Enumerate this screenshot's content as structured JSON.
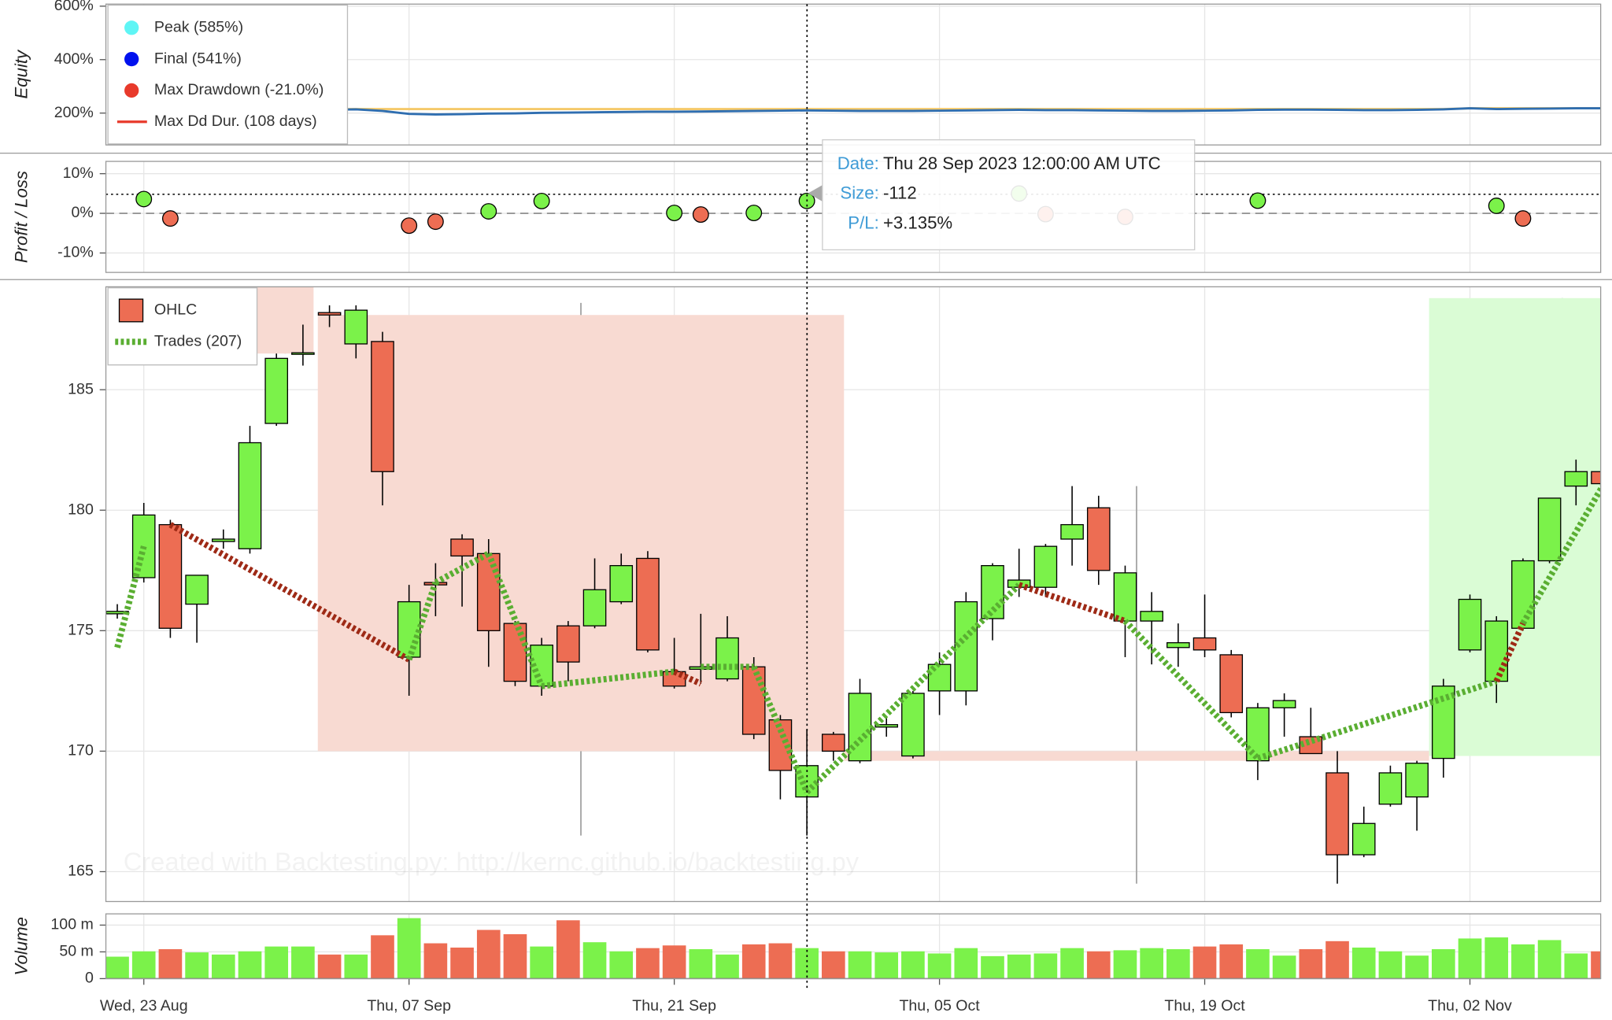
{
  "chart_data": [
    {
      "type": "line",
      "y_label": "Equity",
      "xlim": [
        -0.43,
        55.93
      ],
      "ylim": [
        80.8,
        607.7
      ],
      "yticks": [
        {
          "value": 200,
          "label": "200%"
        },
        {
          "value": 400,
          "label": "400%"
        },
        {
          "value": 600,
          "label": "600%"
        }
      ],
      "grid": true,
      "series": [
        {
          "color": "#f5c96a",
          "values": [
            215,
            215,
            215,
            215,
            215,
            215,
            215,
            215,
            215,
            215,
            215,
            215,
            215,
            215,
            215,
            215,
            215,
            215,
            215,
            215,
            215,
            215,
            215,
            215,
            215,
            215,
            215,
            215,
            215,
            215,
            215,
            215,
            215,
            215,
            215,
            215,
            215,
            215,
            215,
            215,
            215,
            215,
            215,
            215,
            215,
            215,
            215,
            215,
            215,
            215,
            215,
            218,
            218,
            218,
            218,
            218,
            218
          ]
        },
        {
          "color": "#2f6eb0",
          "values": [
            212,
            212,
            212,
            212,
            212,
            212,
            212,
            212,
            212,
            214,
            208,
            197,
            195,
            196,
            198,
            199,
            201,
            202,
            203,
            204,
            205,
            205,
            206,
            207,
            208,
            209,
            210,
            209,
            208,
            208,
            208,
            209,
            210,
            211,
            212,
            211,
            211,
            210,
            209,
            208,
            208,
            209,
            210,
            212,
            213,
            213,
            212,
            211,
            211,
            212,
            214,
            218,
            215,
            216,
            217,
            218,
            218
          ]
        }
      ],
      "legend": [
        {
          "label": "Peak (585%)",
          "color": "#5ff5f5",
          "marker": "circle"
        },
        {
          "label": "Final (541%)",
          "color": "#0011ee",
          "marker": "circle"
        },
        {
          "label": "Max Drawdown (-21.0%)",
          "color": "#e83a2b",
          "marker": "circle"
        },
        {
          "label": "Max Dd Dur. (108 days)",
          "color": "#e83a2b",
          "marker": "line"
        }
      ]
    },
    {
      "type": "scatter",
      "y_label": "Profit / Loss",
      "xlim": [
        -0.43,
        55.93
      ],
      "ylim": [
        -14.9,
        13.1
      ],
      "yticks": [
        {
          "value": 10,
          "label": "10%"
        },
        {
          "value": 0,
          "label": "0%"
        },
        {
          "value": -10,
          "label": "-10%"
        }
      ],
      "grid": true,
      "up_color": "#7bf24a",
      "down_color": "#ed6d53",
      "x": [
        1,
        2,
        11,
        12,
        14,
        16,
        21,
        22,
        24,
        26,
        34,
        35,
        38,
        43,
        52,
        53
      ],
      "values": [
        3.6,
        -1.3,
        -3.1,
        -2.1,
        0.5,
        3.1,
        0.1,
        -0.3,
        0.1,
        3.135,
        5.0,
        -0.2,
        -0.9,
        3.2,
        1.9,
        -1.3
      ],
      "reference_lines": [
        {
          "value": 0,
          "style": "dashed"
        },
        {
          "value": 4.8,
          "style": "dotted"
        }
      ]
    },
    {
      "type": "candlestick",
      "xlim": [
        -0.43,
        55.93
      ],
      "ylim": [
        163.76,
        189.27
      ],
      "yticks": [
        165,
        170,
        175,
        180,
        185
      ],
      "grid": true,
      "up_color": "#7bf24a",
      "down_color": "#ed6d53",
      "bg_up_color": "#dafcd5",
      "bg_down_color": "#f8dad2",
      "open": [
        175.7,
        177.2,
        179.4,
        176.1,
        178.7,
        178.4,
        183.6,
        186.5,
        188.2,
        186.9,
        187.0,
        173.9,
        177.0,
        178.8,
        178.2,
        175.3,
        172.7,
        175.2,
        175.2,
        176.2,
        178.0,
        173.3,
        173.4,
        173.0,
        173.5,
        171.3,
        168.1,
        170.7,
        169.6,
        171.0,
        169.8,
        172.5,
        172.5,
        175.5,
        176.8,
        176.8,
        178.8,
        180.1,
        175.4,
        175.4,
        174.3,
        174.7,
        174.0,
        169.6,
        171.8,
        170.6,
        169.1,
        165.7,
        167.8,
        168.1,
        169.7,
        174.2,
        172.9,
        175.1,
        177.9,
        181.0,
        181.6
      ],
      "high": [
        176.1,
        180.3,
        179.6,
        177.3,
        179.2,
        183.5,
        186.5,
        187.7,
        188.5,
        188.5,
        187.4,
        176.9,
        177.8,
        179.0,
        178.8,
        175.4,
        174.7,
        175.4,
        178.0,
        178.2,
        178.3,
        174.7,
        175.7,
        175.6,
        173.9,
        171.5,
        170.9,
        170.8,
        173.0,
        171.4,
        172.5,
        174.1,
        176.6,
        177.8,
        178.4,
        178.6,
        181.0,
        180.6,
        177.7,
        176.6,
        175.3,
        176.5,
        174.2,
        172.0,
        172.4,
        171.8,
        170.0,
        167.7,
        169.4,
        169.6,
        173.0,
        176.5,
        175.6,
        178.0,
        180.5,
        182.1,
        182.7
      ],
      "low": [
        175.5,
        177.0,
        174.7,
        174.5,
        178.4,
        178.2,
        183.5,
        186.0,
        187.6,
        186.3,
        180.2,
        172.3,
        175.6,
        176.0,
        173.5,
        172.7,
        172.3,
        172.9,
        175.1,
        176.1,
        174.1,
        172.6,
        172.8,
        172.9,
        170.5,
        168.0,
        166.5,
        169.6,
        169.5,
        170.6,
        169.7,
        171.5,
        171.9,
        174.6,
        176.4,
        176.4,
        177.7,
        176.9,
        173.9,
        173.6,
        173.5,
        173.9,
        171.4,
        168.8,
        170.6,
        169.9,
        164.5,
        165.6,
        167.7,
        166.7,
        168.9,
        174.1,
        172.0,
        175.0,
        177.8,
        180.2,
        178.0
      ],
      "close": [
        175.8,
        179.8,
        175.1,
        177.3,
        178.8,
        182.8,
        186.3,
        186.5,
        188.1,
        188.3,
        181.6,
        176.2,
        176.9,
        178.1,
        175.0,
        172.9,
        174.4,
        173.7,
        176.7,
        177.7,
        174.2,
        172.7,
        173.5,
        174.7,
        170.7,
        169.2,
        169.4,
        170.0,
        172.4,
        171.1,
        172.4,
        173.6,
        176.2,
        177.7,
        177.1,
        178.5,
        179.4,
        177.5,
        177.4,
        175.8,
        174.5,
        174.2,
        171.6,
        171.8,
        172.1,
        169.9,
        165.7,
        167.0,
        169.1,
        169.5,
        172.7,
        176.3,
        175.4,
        177.9,
        180.5,
        181.6,
        181.1
      ],
      "background_bars": [
        {
          "from": 5.27,
          "to": 7.4,
          "open": 190.0,
          "high": 190.0,
          "low": 186.5,
          "close": 186.5
        },
        {
          "from": 7.56,
          "to": 27.4,
          "open": 188.1,
          "high": 188.6,
          "low": 166.5,
          "close": 170.0
        },
        {
          "from": 27.4,
          "to": 49.46,
          "open": 170.0,
          "high": 181.0,
          "low": 164.5,
          "close": 169.6
        },
        {
          "from": 49.46,
          "to": 59.5,
          "open": 169.8,
          "high": 188.8,
          "low": 169.8,
          "close": 188.8
        }
      ],
      "trades": [
        {
          "x": [
            0,
            1
          ],
          "values": [
            174.3,
            178.5
          ],
          "color": "#5aae32"
        },
        {
          "x": [
            2,
            11
          ],
          "values": [
            179.4,
            173.8
          ],
          "color": "#9e2a16"
        },
        {
          "x": [
            11,
            12
          ],
          "values": [
            173.8,
            177.0
          ],
          "color": "#5aae32"
        },
        {
          "x": [
            12,
            14
          ],
          "values": [
            177.0,
            178.2
          ],
          "color": "#5aae32"
        },
        {
          "x": [
            14,
            16
          ],
          "values": [
            178.2,
            172.7
          ],
          "color": "#5aae32"
        },
        {
          "x": [
            16,
            21
          ],
          "values": [
            172.7,
            173.3
          ],
          "color": "#5aae32"
        },
        {
          "x": [
            21,
            22
          ],
          "values": [
            173.3,
            172.8
          ],
          "color": "#9e2a16"
        },
        {
          "x": [
            22,
            24
          ],
          "values": [
            173.5,
            173.5
          ],
          "color": "#5aae32"
        },
        {
          "x": [
            24,
            26
          ],
          "values": [
            173.5,
            168.3
          ],
          "color": "#5aae32"
        },
        {
          "x": [
            26,
            34
          ],
          "values": [
            168.3,
            176.9
          ],
          "color": "#5aae32"
        },
        {
          "x": [
            34,
            38
          ],
          "values": [
            176.9,
            175.4
          ],
          "color": "#9e2a16"
        },
        {
          "x": [
            38,
            43
          ],
          "values": [
            175.4,
            169.7
          ],
          "color": "#5aae32"
        },
        {
          "x": [
            43,
            52
          ],
          "values": [
            169.7,
            172.9
          ],
          "color": "#5aae32"
        },
        {
          "x": [
            52,
            53
          ],
          "values": [
            172.9,
            175.3
          ],
          "color": "#9e2a16"
        },
        {
          "x": [
            53,
            56
          ],
          "values": [
            175.3,
            181.0
          ],
          "color": "#5aae32"
        }
      ],
      "legend": [
        {
          "label": "OHLC",
          "color": "#ed6d53",
          "marker": "box"
        },
        {
          "label": "Trades (207)",
          "color": "#5aae32",
          "marker": "dotted"
        }
      ]
    },
    {
      "type": "bar",
      "y_label": "Volume",
      "xlim": [
        -0.43,
        55.93
      ],
      "ylim": [
        0,
        121
      ],
      "yticks": [
        0,
        {
          "value": 50,
          "label": "50 m"
        },
        {
          "value": 100,
          "label": "100 m"
        }
      ],
      "grid": true,
      "categories": [
        null,
        "Wed, 23 Aug",
        null,
        null,
        null,
        null,
        null,
        null,
        null,
        null,
        null,
        "Thu, 07 Sep",
        null,
        null,
        null,
        null,
        null,
        null,
        null,
        null,
        null,
        "Thu, 21 Sep",
        null,
        null,
        null,
        null,
        null,
        null,
        null,
        null,
        null,
        "Thu, 05 Oct",
        null,
        null,
        null,
        null,
        null,
        null,
        null,
        null,
        null,
        "Thu, 19 Oct",
        null,
        null,
        null,
        null,
        null,
        null,
        null,
        null,
        null,
        "Thu, 02 Nov",
        null,
        null,
        null,
        null,
        null
      ],
      "values": [
        41,
        51,
        55,
        49,
        45,
        51,
        60,
        60,
        45,
        45,
        81,
        113,
        66,
        58,
        91,
        83,
        60,
        109,
        68,
        51,
        57,
        62,
        55,
        45,
        64,
        66,
        57,
        51,
        51,
        49,
        51,
        47,
        57,
        42,
        45,
        47,
        57,
        51,
        53,
        57,
        55,
        60,
        64,
        55,
        43,
        55,
        70,
        58,
        51,
        43,
        55,
        75,
        77,
        64,
        72,
        47,
        51
      ]
    }
  ],
  "tooltip": {
    "rows": [
      {
        "label": "Date:",
        "value": "Thu 28 Sep 2023 12:00:00 AM UTC"
      },
      {
        "label": "Size:",
        "value": "-112"
      },
      {
        "label": "P/L:",
        "value": "+3.135%"
      }
    ]
  },
  "watermark": "Created with Backtesting.py: http://kernc.github.io/backtesting.py"
}
